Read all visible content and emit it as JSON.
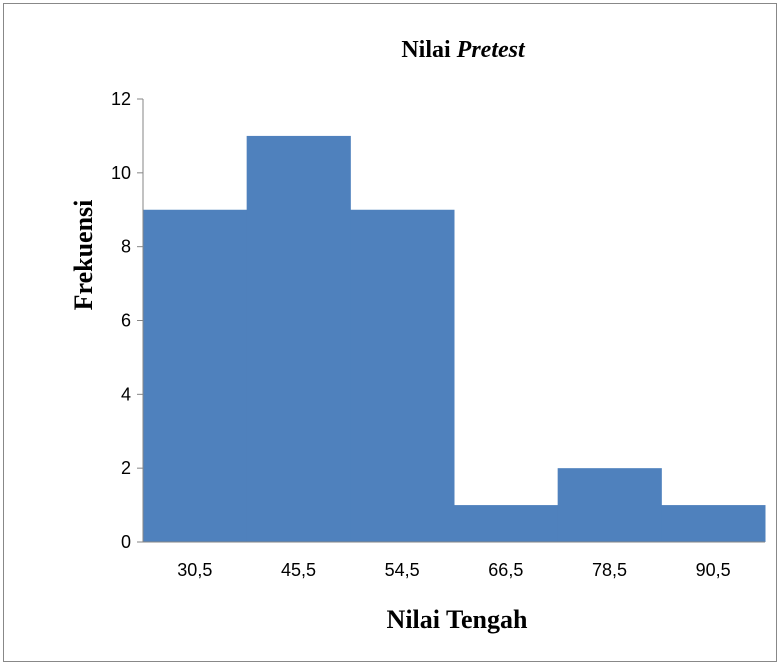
{
  "chart_data": {
    "type": "bar",
    "title_main": "Nilai ",
    "title_italic": "Pretest",
    "xlabel": "Nilai Tengah",
    "ylabel": "Frekuensi",
    "categories": [
      "30,5",
      "45,5",
      "54,5",
      "66,5",
      "78,5",
      "90,5"
    ],
    "values": [
      9,
      11,
      9,
      1,
      2,
      1
    ],
    "ylim": [
      0,
      12
    ],
    "yticks": [
      0,
      2,
      4,
      6,
      8,
      10,
      12
    ],
    "bar_color": "#4f81bd",
    "grid": false,
    "legend": "none"
  }
}
